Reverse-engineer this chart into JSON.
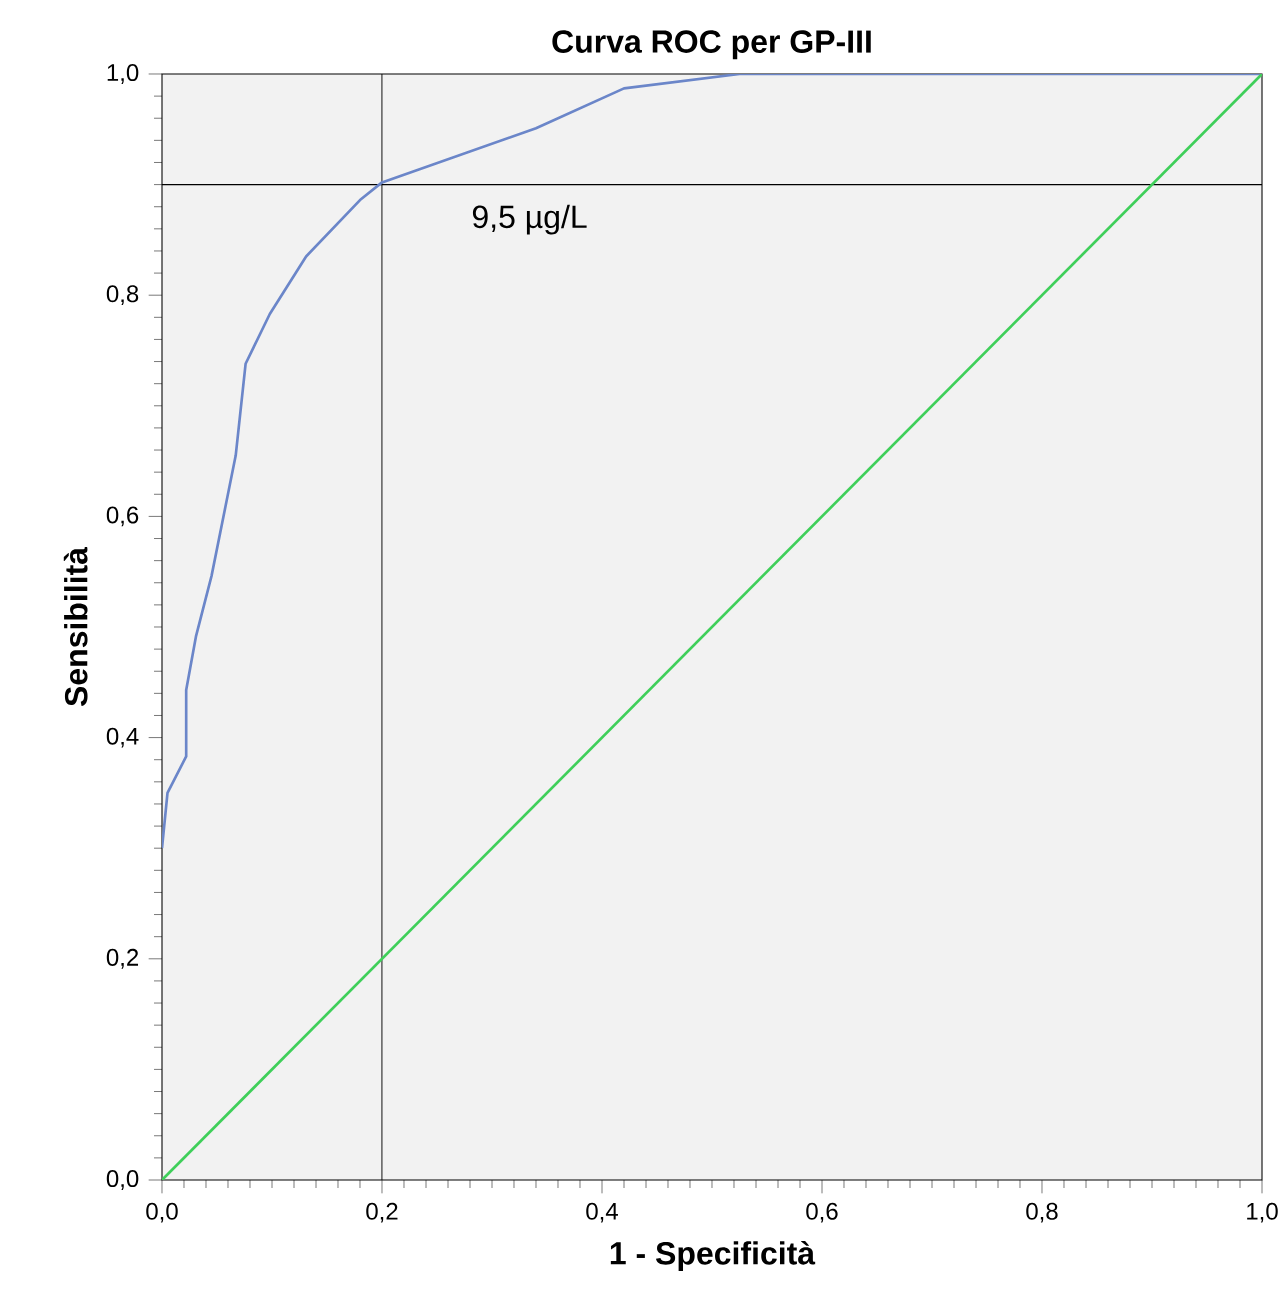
{
  "chart_data": {
    "type": "line",
    "title": "Curva ROC per GP-III",
    "xlabel": "1 - Specificità",
    "ylabel": "Sensibilità",
    "series": [
      {
        "color": "#6b86c9",
        "x": [
          0,
          0.005,
          0.022,
          0.022,
          0.031,
          0.045,
          0.067,
          0.076,
          0.098,
          0.131,
          0.18,
          0.2,
          0.34,
          0.42,
          0.525,
          1.0
        ],
        "values": [
          0.3,
          0.35,
          0.383,
          0.443,
          0.492,
          0.546,
          0.655,
          0.738,
          0.783,
          0.835,
          0.886,
          0.902,
          0.951,
          0.987,
          1.0,
          1.0
        ]
      },
      {
        "color": "#3fcf5a",
        "x": [
          0,
          1
        ],
        "values": [
          0,
          1
        ]
      }
    ],
    "xlim": [
      0,
      1
    ],
    "ylim": [
      0,
      1
    ],
    "xticks": [
      {
        "value": 0,
        "label": "0,0"
      },
      {
        "value": 0.2,
        "label": "0,2"
      },
      {
        "value": 0.4,
        "label": "0,4"
      },
      {
        "value": 0.6,
        "label": "0,6"
      },
      {
        "value": 0.8,
        "label": "0,8"
      },
      {
        "value": 1,
        "label": "1,0"
      }
    ],
    "yticks": [
      {
        "value": 0,
        "label": "0,0"
      },
      {
        "value": 0.2,
        "label": "0,2"
      },
      {
        "value": 0.4,
        "label": "0,4"
      },
      {
        "value": 0.6,
        "label": "0,6"
      },
      {
        "value": 0.8,
        "label": "0,8"
      },
      {
        "value": 1,
        "label": "1,0"
      }
    ],
    "ref_lines": [
      {
        "axis": "x",
        "value": 0.2,
        "color": "#000000"
      },
      {
        "axis": "y",
        "value": 0.9,
        "color": "#000000"
      }
    ],
    "annotations": [
      {
        "text": "9,5 µg/L",
        "x": 0.2,
        "y": 0.9
      }
    ],
    "marker": "none",
    "line_style": "solid"
  }
}
